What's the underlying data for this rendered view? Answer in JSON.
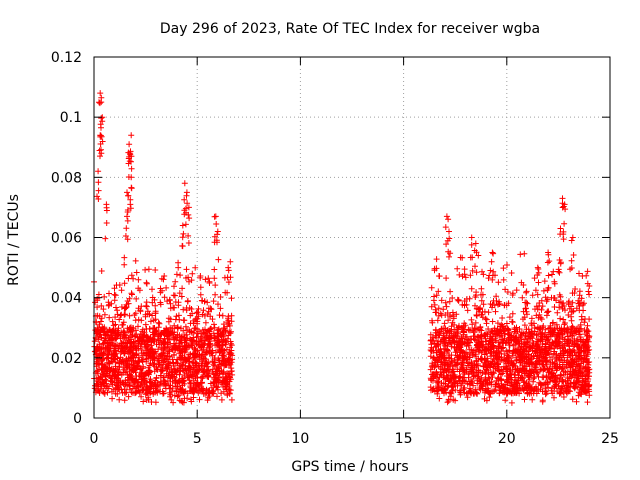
{
  "chart_data": {
    "type": "scatter",
    "title": "Day 296 of 2023, Rate Of TEC Index for receiver wgba",
    "xlabel": "GPS time / hours",
    "ylabel": "ROTI / TECUs",
    "xlim": [
      0,
      25
    ],
    "ylim": [
      0,
      0.12
    ],
    "xticks": [
      0,
      5,
      10,
      15,
      20,
      25
    ],
    "xtick_labels": [
      "0",
      "5",
      "10",
      "15",
      "20",
      "25"
    ],
    "yticks": [
      0,
      0.02,
      0.04,
      0.06,
      0.08,
      0.1,
      0.12
    ],
    "ytick_labels": [
      "0",
      "0.02",
      "0.04",
      "0.06",
      "0.08",
      "0.1",
      "0.12"
    ],
    "grid": true,
    "marker": "+",
    "color": "#ff0000",
    "series": [
      {
        "name": "ROTI",
        "segments": [
          {
            "x_start": 0.0,
            "x_end": 6.7,
            "typical_low": 0.008,
            "typical_high": 0.03,
            "note": "dense band of samples"
          },
          {
            "x_start": 16.3,
            "x_end": 24.0,
            "typical_low": 0.008,
            "typical_high": 0.03,
            "note": "dense band of samples"
          }
        ],
        "peaks": [
          {
            "x": 0.3,
            "y": 0.108
          },
          {
            "x": 0.35,
            "y": 0.105
          },
          {
            "x": 0.4,
            "y": 0.1
          },
          {
            "x": 0.3,
            "y": 0.094
          },
          {
            "x": 0.2,
            "y": 0.082
          },
          {
            "x": 0.6,
            "y": 0.071
          },
          {
            "x": 1.8,
            "y": 0.094
          },
          {
            "x": 1.7,
            "y": 0.091
          },
          {
            "x": 1.75,
            "y": 0.088
          },
          {
            "x": 1.8,
            "y": 0.08
          },
          {
            "x": 1.6,
            "y": 0.075
          },
          {
            "x": 1.6,
            "y": 0.067
          },
          {
            "x": 4.4,
            "y": 0.078
          },
          {
            "x": 4.5,
            "y": 0.075
          },
          {
            "x": 4.6,
            "y": 0.07
          },
          {
            "x": 4.3,
            "y": 0.064
          },
          {
            "x": 5.9,
            "y": 0.067
          },
          {
            "x": 6.0,
            "y": 0.062
          },
          {
            "x": 6.5,
            "y": 0.05
          },
          {
            "x": 17.1,
            "y": 0.067
          },
          {
            "x": 17.2,
            "y": 0.062
          },
          {
            "x": 18.3,
            "y": 0.06
          },
          {
            "x": 18.5,
            "y": 0.058
          },
          {
            "x": 19.3,
            "y": 0.055
          },
          {
            "x": 22.7,
            "y": 0.073
          },
          {
            "x": 22.8,
            "y": 0.071
          },
          {
            "x": 22.6,
            "y": 0.063
          },
          {
            "x": 23.2,
            "y": 0.06
          },
          {
            "x": 22.0,
            "y": 0.055
          },
          {
            "x": 21.5,
            "y": 0.05
          }
        ]
      }
    ]
  }
}
